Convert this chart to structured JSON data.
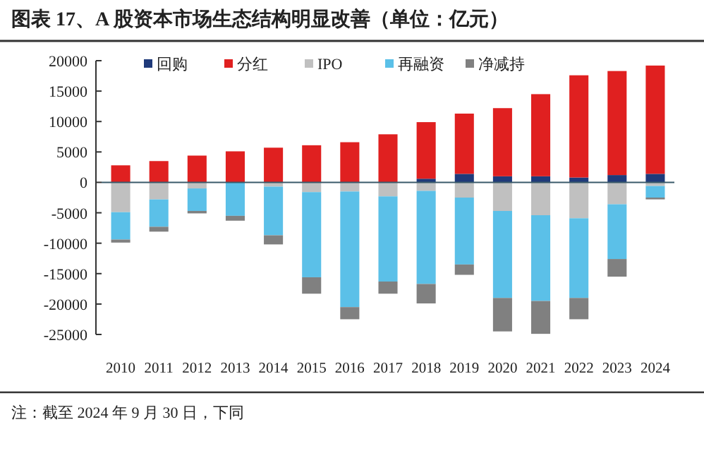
{
  "chart_data": {
    "type": "bar",
    "title": "图表 17、A 股资本市场生态结构明显改善（单位：亿元）",
    "annotations": [
      "注：截至 2024 年 9 月 30 日，下同"
    ],
    "categories": [
      "2010",
      "2011",
      "2012",
      "2013",
      "2014",
      "2015",
      "2016",
      "2017",
      "2018",
      "2019",
      "2020",
      "2021",
      "2022",
      "2023",
      "2024"
    ],
    "stacked": true,
    "ref_lines": [
      {
        "axis": "y",
        "value": 0,
        "color": "#3a5a6a"
      }
    ],
    "legend": "top",
    "ylim": [
      -25000,
      20000
    ],
    "yticks": [
      20000,
      15000,
      10000,
      5000,
      0,
      -5000,
      -10000,
      -15000,
      -20000,
      -25000
    ],
    "series": [
      {
        "name": "回购",
        "color": "#1f3a7a",
        "values": [
          null,
          null,
          null,
          null,
          null,
          null,
          null,
          null,
          600,
          1400,
          1000,
          1000,
          800,
          1200,
          1400
        ]
      },
      {
        "name": "分红",
        "color": "#e02020",
        "values": [
          2800,
          3500,
          4400,
          5100,
          5700,
          6100,
          6600,
          7900,
          9300,
          9900,
          11200,
          13500,
          16800,
          17100,
          17800
        ]
      },
      {
        "name": "IPO",
        "color": "#c0c0c0",
        "values": [
          -4900,
          -2800,
          -1000,
          0,
          -700,
          -1600,
          -1500,
          -2300,
          -1400,
          -2500,
          -4700,
          -5400,
          -5900,
          -3600,
          -600
        ]
      },
      {
        "name": "再融资",
        "color": "#5bc0e8",
        "values": [
          -4500,
          -4500,
          -3700,
          -5500,
          -8000,
          -14000,
          -19000,
          -14000,
          -15300,
          -11000,
          -14300,
          -14100,
          -13100,
          -9000,
          -1900
        ]
      },
      {
        "name": "净减持",
        "color": "#808080",
        "values": [
          -500,
          -800,
          -400,
          -800,
          -1500,
          -2700,
          -2000,
          -2000,
          -3200,
          -1700,
          -5500,
          -5400,
          -3500,
          -2900,
          -300
        ]
      }
    ]
  }
}
